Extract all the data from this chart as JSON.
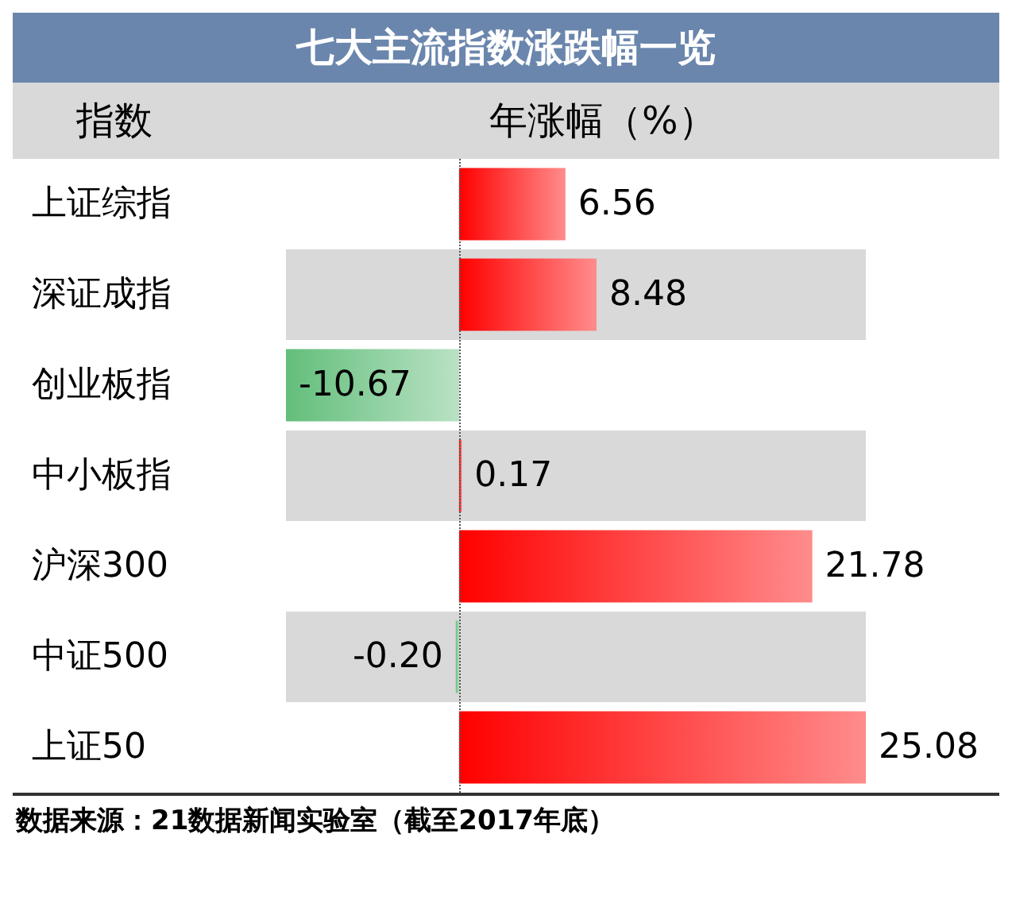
{
  "chart_data": {
    "type": "bar",
    "orientation": "horizontal",
    "title": "七大主流指数涨跌幅一览",
    "ylabel": "指数",
    "xlabel": "年涨幅（%）",
    "categories": [
      "上证综指",
      "深证成指",
      "创业板指",
      "中小板指",
      "沪深300",
      "中证500",
      "上证50"
    ],
    "values": [
      6.56,
      8.48,
      -10.67,
      0.17,
      21.78,
      -0.2,
      25.08
    ],
    "colors": [
      "#ff0000",
      "#ff0000",
      "#63be7b",
      "#ff0000",
      "#ff0000",
      "#63be7b",
      "#ff0000"
    ],
    "value_labels": [
      "6.56",
      "8.48",
      "-10.67",
      "0.17",
      "21.78",
      "-0.20",
      "25.08"
    ],
    "ref_lines": [
      {
        "axis": "x",
        "value": 0,
        "line_style": "dotted",
        "color": "#555555"
      }
    ],
    "annotations": [
      "数据来源：21数据新闻实验室（截至2017年底）"
    ]
  }
}
